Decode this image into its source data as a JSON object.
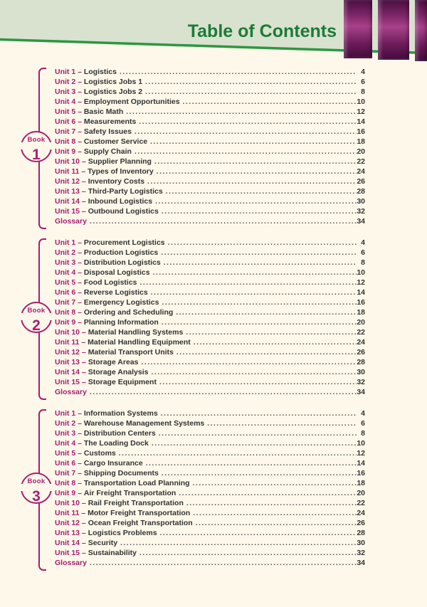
{
  "page": {
    "title": "Table of Contents"
  },
  "colors": {
    "page_bg": "#fdf8ea",
    "header_band": "#d8e2ce",
    "header_line": "#2d9740",
    "title_green": "#1c7a38",
    "accent_purple": "#a81e70",
    "text_dark": "#333333",
    "bar_purple_dark": "#420b3a",
    "bar_purple_light": "#a8418a"
  },
  "sections": [
    {
      "badge_label": "Book",
      "badge_number": "1",
      "items": [
        {
          "unit": "Unit 1",
          "title": "Logistics",
          "page": "4"
        },
        {
          "unit": "Unit 2",
          "title": "Logistics Jobs 1",
          "page": "6"
        },
        {
          "unit": "Unit 3",
          "title": "Logistics Jobs 2",
          "page": "8"
        },
        {
          "unit": "Unit 4",
          "title": "Employment Opportunities",
          "page": "10"
        },
        {
          "unit": "Unit 5",
          "title": "Basic Math",
          "page": "12"
        },
        {
          "unit": "Unit 6",
          "title": "Measurements",
          "page": "14"
        },
        {
          "unit": "Unit 7",
          "title": "Safety Issues",
          "page": "16"
        },
        {
          "unit": "Unit 8",
          "title": "Customer Service",
          "page": "18"
        },
        {
          "unit": "Unit 9",
          "title": "Supply Chain",
          "page": "20"
        },
        {
          "unit": "Unit 10",
          "title": "Supplier Planning",
          "page": "22"
        },
        {
          "unit": "Unit 11",
          "title": "Types of Inventory",
          "page": "24"
        },
        {
          "unit": "Unit 12",
          "title": "Inventory Costs",
          "page": "26"
        },
        {
          "unit": "Unit 13",
          "title": "Third-Party Logistics",
          "page": "28"
        },
        {
          "unit": "Unit 14",
          "title": "Inbound Logistics",
          "page": "30"
        },
        {
          "unit": "Unit 15",
          "title": "Outbound Logistics",
          "page": "32"
        },
        {
          "unit": "Glossary",
          "title": "",
          "page": "34"
        }
      ]
    },
    {
      "badge_label": "Book",
      "badge_number": "2",
      "items": [
        {
          "unit": "Unit 1",
          "title": "Procurement Logistics",
          "page": "4"
        },
        {
          "unit": "Unit 2",
          "title": "Production Logistics",
          "page": "6"
        },
        {
          "unit": "Unit 3",
          "title": "Distribution Logistics",
          "page": "8"
        },
        {
          "unit": "Unit 4",
          "title": "Disposal Logistics",
          "page": "10"
        },
        {
          "unit": "Unit 5",
          "title": "Food Logistics",
          "page": "12"
        },
        {
          "unit": "Unit 6",
          "title": "Reverse Logistics",
          "page": "14"
        },
        {
          "unit": "Unit 7",
          "title": "Emergency Logistics",
          "page": "16"
        },
        {
          "unit": "Unit 8",
          "title": "Ordering and Scheduling",
          "page": "18"
        },
        {
          "unit": "Unit 9",
          "title": "Planning Information",
          "page": "20"
        },
        {
          "unit": "Unit 10",
          "title": "Material Handling Systems",
          "page": "22"
        },
        {
          "unit": "Unit 11",
          "title": "Material Handling Equipment",
          "page": "24"
        },
        {
          "unit": "Unit 12",
          "title": "Material Transport Units",
          "page": "26"
        },
        {
          "unit": "Unit 13",
          "title": "Storage Areas",
          "page": "28"
        },
        {
          "unit": "Unit 14",
          "title": "Storage Analysis",
          "page": "30"
        },
        {
          "unit": "Unit 15",
          "title": "Storage Equipment",
          "page": "32"
        },
        {
          "unit": "Glossary",
          "title": "",
          "page": "34"
        }
      ]
    },
    {
      "badge_label": "Book",
      "badge_number": "3",
      "items": [
        {
          "unit": "Unit 1",
          "title": "Information Systems",
          "page": "4"
        },
        {
          "unit": "Unit 2",
          "title": "Warehouse Management Systems",
          "page": "6"
        },
        {
          "unit": "Unit 3",
          "title": "Distribution Centers",
          "page": "8"
        },
        {
          "unit": "Unit 4",
          "title": "The Loading Dock",
          "page": "10"
        },
        {
          "unit": "Unit 5",
          "title": "Customs",
          "page": "12"
        },
        {
          "unit": "Unit 6",
          "title": "Cargo Insurance",
          "page": "14"
        },
        {
          "unit": "Unit 7",
          "title": "Shipping Documents",
          "page": "16"
        },
        {
          "unit": "Unit 8",
          "title": "Transportation Load Planning",
          "page": "18"
        },
        {
          "unit": "Unit 9",
          "title": "Air Freight Transportation",
          "page": "20"
        },
        {
          "unit": "Unit 10",
          "title": "Rail Freight Transportation",
          "page": "22"
        },
        {
          "unit": "Unit 11",
          "title": "Motor Freight Transportation",
          "page": "24"
        },
        {
          "unit": "Unit 12",
          "title": "Ocean Freight Transportation",
          "page": "26"
        },
        {
          "unit": "Unit 13",
          "title": "Logistics Problems",
          "page": "28"
        },
        {
          "unit": "Unit 14",
          "title": "Security",
          "page": "30"
        },
        {
          "unit": "Unit 15",
          "title": "Sustainability",
          "page": "32"
        },
        {
          "unit": "Glossary",
          "title": "",
          "page": "34"
        }
      ]
    }
  ]
}
